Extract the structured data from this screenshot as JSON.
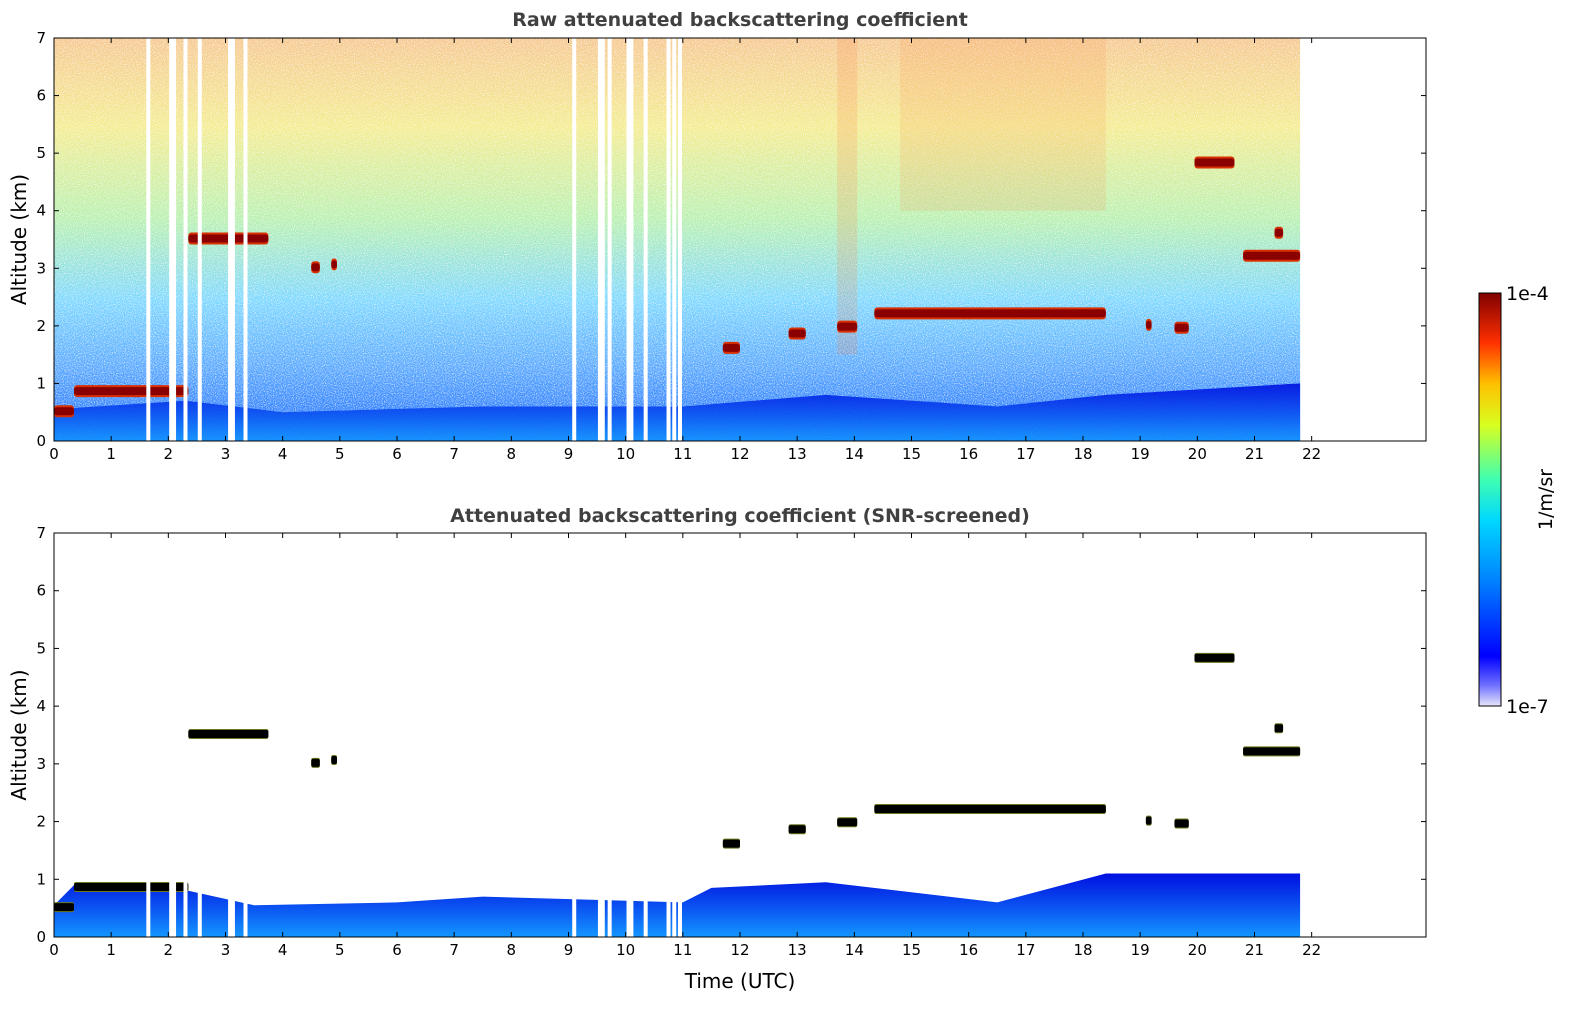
{
  "chart_data": [
    {
      "type": "heatmap",
      "title": "Raw attenuated backscattering coefficient",
      "xlabel": "",
      "ylabel": "Altitude (km)",
      "xlim": [
        0,
        24
      ],
      "ylim": [
        0,
        7
      ],
      "xticks": [
        "0",
        "1",
        "2",
        "3",
        "4",
        "5",
        "6",
        "7",
        "8",
        "9",
        "10",
        "11",
        "12",
        "13",
        "14",
        "15",
        "16",
        "17",
        "18",
        "19",
        "20",
        "21",
        "22"
      ],
      "yticks": [
        "0",
        "1",
        "2",
        "3",
        "4",
        "5",
        "6",
        "7"
      ],
      "data_end_time": 21.8,
      "missing_data_times": [
        1.65,
        2.05,
        2.1,
        2.3,
        2.55,
        3.08,
        3.13,
        3.35,
        9.1,
        9.55,
        9.6,
        9.72,
        10.05,
        10.1,
        10.35,
        10.75,
        10.85,
        10.95
      ],
      "noise": "high-altitude random noise; values rise from blue near ground to yellow-red near 7 km",
      "boundary_layer": [
        {
          "t": 0.0,
          "top_km": 0.55
        },
        {
          "t": 2.3,
          "top_km": 0.7
        },
        {
          "t": 4.0,
          "top_km": 0.5
        },
        {
          "t": 7.5,
          "top_km": 0.6
        },
        {
          "t": 11.0,
          "top_km": 0.6
        },
        {
          "t": 13.5,
          "top_km": 0.8
        },
        {
          "t": 16.5,
          "top_km": 0.6
        },
        {
          "t": 18.4,
          "top_km": 0.8
        },
        {
          "t": 21.8,
          "top_km": 1.0
        }
      ],
      "cloud_layers": [
        {
          "t_start": 0.35,
          "t_end": 2.35,
          "alt_km": 0.85
        },
        {
          "t_start": 0.0,
          "t_end": 0.35,
          "alt_km": 0.5
        },
        {
          "t_start": 2.35,
          "t_end": 3.75,
          "alt_km": 3.5
        },
        {
          "t_start": 4.5,
          "t_end": 4.65,
          "alt_km": 3.0
        },
        {
          "t_start": 4.85,
          "t_end": 4.95,
          "alt_km": 3.05
        },
        {
          "t_start": 11.7,
          "t_end": 12.0,
          "alt_km": 1.6
        },
        {
          "t_start": 12.85,
          "t_end": 13.15,
          "alt_km": 1.85
        },
        {
          "t_start": 13.7,
          "t_end": 14.05,
          "alt_km": 1.97
        },
        {
          "t_start": 14.35,
          "t_end": 18.4,
          "alt_km": 2.2
        },
        {
          "t_start": 19.1,
          "t_end": 19.2,
          "alt_km": 2.0
        },
        {
          "t_start": 19.6,
          "t_end": 19.85,
          "alt_km": 1.95
        },
        {
          "t_start": 19.95,
          "t_end": 20.65,
          "alt_km": 4.82
        },
        {
          "t_start": 20.8,
          "t_end": 21.8,
          "alt_km": 3.2
        },
        {
          "t_start": 21.35,
          "t_end": 21.5,
          "alt_km": 3.6
        }
      ]
    },
    {
      "type": "heatmap",
      "title": "Attenuated backscattering coefficient (SNR-screened)",
      "xlabel": "Time (UTC)",
      "ylabel": "Altitude (km)",
      "xlim": [
        0,
        24
      ],
      "ylim": [
        0,
        7
      ],
      "xticks": [
        "0",
        "1",
        "2",
        "3",
        "4",
        "5",
        "6",
        "7",
        "8",
        "9",
        "10",
        "11",
        "12",
        "13",
        "14",
        "15",
        "16",
        "17",
        "18",
        "19",
        "20",
        "21",
        "22"
      ],
      "yticks": [
        "0",
        "1",
        "2",
        "3",
        "4",
        "5",
        "6",
        "7"
      ],
      "data_end_time": 21.8,
      "screened_cloud_color": "#000000",
      "boundary_layer": [
        {
          "t": 0.0,
          "top_km": 0.55
        },
        {
          "t": 0.35,
          "top_km": 0.9
        },
        {
          "t": 2.35,
          "top_km": 0.8
        },
        {
          "t": 3.5,
          "top_km": 0.55
        },
        {
          "t": 6.0,
          "top_km": 0.6
        },
        {
          "t": 7.5,
          "top_km": 0.7
        },
        {
          "t": 11.0,
          "top_km": 0.6
        },
        {
          "t": 11.5,
          "top_km": 0.85
        },
        {
          "t": 13.5,
          "top_km": 0.95
        },
        {
          "t": 16.5,
          "top_km": 0.6
        },
        {
          "t": 18.4,
          "top_km": 1.1
        },
        {
          "t": 21.8,
          "top_km": 1.1
        }
      ]
    }
  ],
  "colorbar": {
    "label": "1/m/sr",
    "max_label": "1e-4",
    "min_label": "1e-7",
    "colormap": "jet"
  }
}
